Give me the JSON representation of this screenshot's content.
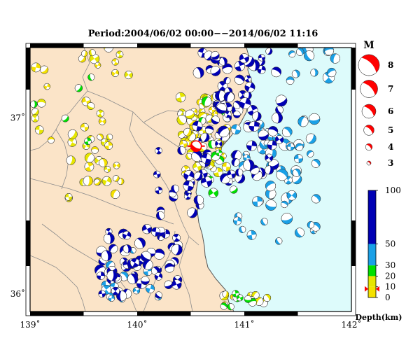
{
  "title": "Period:2004/06/02 00:00−−2014/06/02 11:16",
  "colors": {
    "land": "#fbe4c8",
    "sea": "#ddfbfb",
    "depth_0_10": "#f5e100",
    "depth_10_20": "#e6e600",
    "depth_20_30": "#00e000",
    "depth_30_50": "#1aa0e6",
    "depth_50_100": "#0000b4",
    "highlight": "#ff0000",
    "boundary": "#8c8c8c",
    "coast": "#555555"
  },
  "map": {
    "lon_range": [
      139,
      142
    ],
    "lat_range": [
      35.9,
      37.4
    ],
    "lon_ticks": [
      {
        "value": 139,
        "label": "139˚"
      },
      {
        "value": 140,
        "label": "140˚"
      },
      {
        "value": 141,
        "label": "141˚"
      },
      {
        "value": 142,
        "label": "142˚"
      }
    ],
    "lat_ticks": [
      {
        "value": 36,
        "label": "36˚"
      },
      {
        "value": 37,
        "label": "37˚"
      }
    ]
  },
  "magnitude_legend": {
    "title": "M",
    "items": [
      {
        "label": "8",
        "value": 8
      },
      {
        "label": "7",
        "value": 7
      },
      {
        "label": "6",
        "value": 6
      },
      {
        "label": "5",
        "value": 5
      },
      {
        "label": "4",
        "value": 4
      },
      {
        "label": "3",
        "value": 3
      }
    ]
  },
  "depth_legend": {
    "title": "Depth(km)",
    "ticks": [
      {
        "label": "100",
        "value": 100
      },
      {
        "label": "50",
        "value": 50
      },
      {
        "label": "30",
        "value": 30
      },
      {
        "label": "20",
        "value": 20
      },
      {
        "label": "10",
        "value": 10
      },
      {
        "label": "0",
        "value": 0
      }
    ],
    "marker_depth": 8
  },
  "highlight_event": {
    "lon": 140.55,
    "lat": 36.84,
    "magnitude": 4,
    "color": "red"
  },
  "event_groups": [
    {
      "depth_class": "shallow",
      "center": [
        139.62,
        36.72
      ],
      "spread": [
        0.28,
        0.2
      ],
      "count": 26,
      "mag": [
        3,
        4.2
      ],
      "seed": 11
    },
    {
      "depth_class": "shallow",
      "center": [
        139.66,
        37.32
      ],
      "spread": [
        0.28,
        0.08
      ],
      "count": 10,
      "mag": [
        3,
        4.3
      ],
      "seed": 12
    },
    {
      "depth_class": "shallow",
      "center": [
        139.12,
        37.08
      ],
      "spread": [
        0.08,
        0.25
      ],
      "count": 8,
      "mag": [
        3,
        4.2
      ],
      "seed": 13
    },
    {
      "depth_class": "shallow",
      "center": [
        139.55,
        37.05
      ],
      "spread": [
        0.15,
        0.12
      ],
      "count": 5,
      "mag": [
        3,
        4.2
      ],
      "seed": 14
    },
    {
      "depth_class": "shallow",
      "center": [
        140.62,
        36.9
      ],
      "spread": [
        0.23,
        0.22
      ],
      "count": 70,
      "mag": [
        3,
        4.3
      ],
      "seed": 15
    },
    {
      "depth_class": "shallow",
      "center": [
        141.0,
        35.96
      ],
      "spread": [
        0.22,
        0.05
      ],
      "count": 10,
      "mag": [
        3,
        4
      ],
      "seed": 16
    },
    {
      "depth_class": "green",
      "center": [
        140.75,
        36.85
      ],
      "spread": [
        0.18,
        0.3
      ],
      "count": 16,
      "mag": [
        3,
        4.3
      ],
      "seed": 17
    },
    {
      "depth_class": "green",
      "center": [
        139.3,
        36.95
      ],
      "spread": [
        0.3,
        0.3
      ],
      "count": 5,
      "mag": [
        3,
        3.8
      ],
      "seed": 18
    },
    {
      "depth_class": "green",
      "center": [
        140.9,
        35.96
      ],
      "spread": [
        0.18,
        0.06
      ],
      "count": 9,
      "mag": [
        3,
        4
      ],
      "seed": 19
    },
    {
      "depth_class": "mid",
      "center": [
        141.3,
        36.65
      ],
      "spread": [
        0.38,
        0.35
      ],
      "count": 60,
      "mag": [
        3.2,
        4.8
      ],
      "seed": 20
    },
    {
      "depth_class": "mid",
      "center": [
        141.6,
        37.3
      ],
      "spread": [
        0.25,
        0.1
      ],
      "count": 12,
      "mag": [
        3.2,
        4.8
      ],
      "seed": 21
    },
    {
      "depth_class": "mid",
      "center": [
        139.95,
        36.12
      ],
      "spread": [
        0.25,
        0.15
      ],
      "count": 16,
      "mag": [
        3,
        4.2
      ],
      "seed": 22
    },
    {
      "depth_class": "deep",
      "center": [
        140.95,
        37.0
      ],
      "spread": [
        0.4,
        0.38
      ],
      "count": 85,
      "mag": [
        3.2,
        4.8
      ],
      "seed": 23
    },
    {
      "depth_class": "deep",
      "center": [
        140.0,
        36.17
      ],
      "spread": [
        0.38,
        0.2
      ],
      "count": 60,
      "mag": [
        3.2,
        4.6
      ],
      "seed": 24
    },
    {
      "depth_class": "deep",
      "center": [
        140.42,
        36.6
      ],
      "spread": [
        0.25,
        0.22
      ],
      "count": 20,
      "mag": [
        3.2,
        4.5
      ],
      "seed": 25
    }
  ]
}
